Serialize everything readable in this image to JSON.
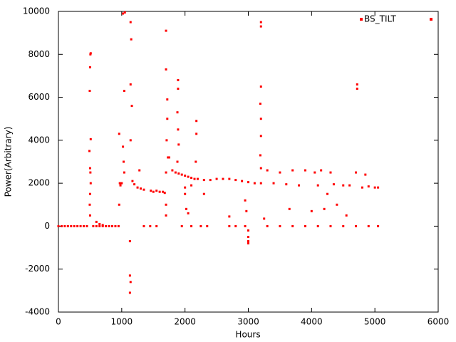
{
  "chart_data": {
    "type": "scatter",
    "x_label": "Hours",
    "y_label": "Power(Arbitrary)",
    "xlim": [
      0,
      6000
    ],
    "ylim": [
      -4000,
      10000
    ],
    "xticks": [
      0,
      1000,
      2000,
      3000,
      4000,
      5000,
      6000
    ],
    "yticks": [
      -4000,
      -2000,
      0,
      2000,
      4000,
      6000,
      8000,
      10000
    ],
    "grid": false,
    "legend": "top-right",
    "series": [
      {
        "name": "BS_TILT",
        "color": "#ff0000",
        "x": [
          0,
          50,
          100,
          150,
          200,
          250,
          300,
          350,
          400,
          450,
          550,
          600,
          650,
          700,
          750,
          800,
          850,
          900,
          950,
          500,
          505,
          510,
          495,
          490,
          500,
          505,
          510,
          500,
          495,
          500,
          510,
          600,
          650,
          700,
          960,
          960,
          970,
          980,
          1000,
          1020,
          1030,
          1040,
          1040,
          1050,
          1020,
          1130,
          1130,
          1140,
          1130,
          1140,
          1150,
          1140,
          1160,
          1140,
          1170,
          1200,
          1250,
          1280,
          1300,
          1350,
          1350,
          1450,
          1550,
          1460,
          1500,
          1550,
          1600,
          1650,
          1680,
          1700,
          1700,
          1720,
          1720,
          1710,
          1730,
          1700,
          1700,
          1700,
          1750,
          1800,
          1850,
          1900,
          1890,
          1890,
          1880,
          1890,
          1900,
          1880,
          1950,
          2000,
          2050,
          2100,
          2150,
          2200,
          2300,
          2400,
          2500,
          2600,
          2700,
          2800,
          2000,
          2000,
          2020,
          2050,
          2100,
          2180,
          2180,
          2170,
          2300,
          1950,
          2100,
          2250,
          2350,
          2700,
          2800,
          2950,
          2700,
          2950,
          2970,
          3000,
          3000,
          3000,
          3000,
          2900,
          3000,
          3100,
          3200,
          3200,
          3200,
          3200,
          3190,
          3200,
          3200,
          3190,
          3200,
          3250,
          3300,
          3400,
          3500,
          3600,
          3650,
          3700,
          3800,
          3900,
          4000,
          4050,
          4100,
          4150,
          4200,
          4250,
          4300,
          4350,
          4400,
          4500,
          4600,
          4700,
          4720,
          4720,
          4800,
          4850,
          4900,
          5000,
          5050,
          3300,
          3500,
          3700,
          3900,
          4100,
          4300,
          4500,
          4700,
          4900,
          5050,
          4550
        ],
        "values": [
          0,
          0,
          0,
          0,
          0,
          0,
          0,
          0,
          0,
          0,
          0,
          0,
          0,
          0,
          0,
          0,
          0,
          0,
          0,
          7400,
          8000,
          8050,
          6300,
          3500,
          2700,
          2500,
          2000,
          1500,
          1000,
          500,
          4050,
          200,
          100,
          50,
          4300,
          1000,
          2000,
          1900,
          2000,
          3700,
          3000,
          2500,
          6300,
          9950,
          9900,
          -700,
          -2300,
          -2600,
          -3100,
          9500,
          8700,
          6600,
          5600,
          4000,
          2100,
          1950,
          1800,
          2600,
          1750,
          1700,
          0,
          0,
          0,
          1650,
          1600,
          1650,
          1600,
          1600,
          1550,
          9100,
          7300,
          5900,
          5000,
          4000,
          3200,
          2500,
          1000,
          500,
          3200,
          2600,
          2500,
          2450,
          6800,
          6400,
          5300,
          4500,
          3800,
          3000,
          2400,
          2350,
          2300,
          2250,
          2200,
          2200,
          2150,
          2150,
          2200,
          2200,
          2200,
          2150,
          1800,
          1500,
          800,
          600,
          1900,
          4900,
          4300,
          3000,
          1500,
          0,
          0,
          0,
          0,
          0,
          0,
          0,
          450,
          1200,
          700,
          -200,
          -500,
          -700,
          -800,
          2100,
          2050,
          2000,
          2000,
          9500,
          9300,
          6500,
          5700,
          5000,
          4200,
          3300,
          2700,
          350,
          2600,
          2000,
          2500,
          1950,
          800,
          2600,
          1900,
          2600,
          700,
          2500,
          1900,
          2600,
          800,
          1500,
          2500,
          1950,
          1000,
          1900,
          1900,
          2500,
          6600,
          6400,
          1800,
          2400,
          1850,
          1800,
          1800,
          0,
          0,
          0,
          0,
          0,
          0,
          0,
          0,
          0,
          0,
          500
        ]
      }
    ]
  }
}
